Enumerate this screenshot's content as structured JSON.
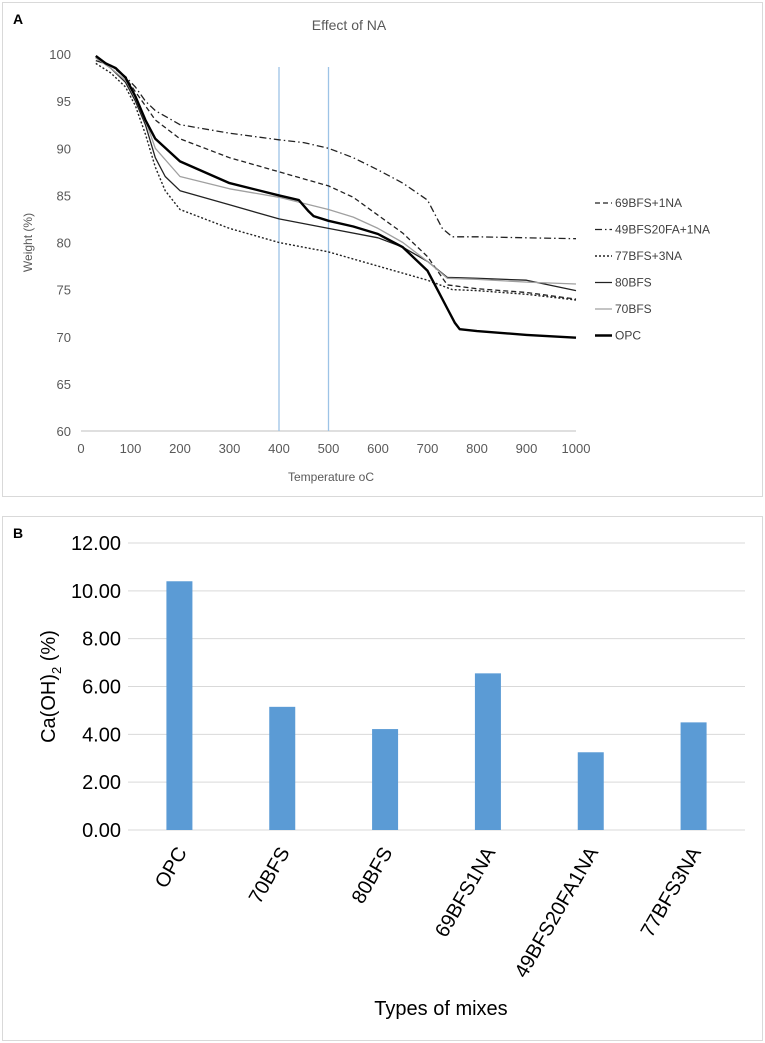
{
  "figure": {
    "panel_a_label": "A",
    "panel_b_label": "B"
  },
  "chart_data": [
    {
      "type": "line",
      "title": "Effect of NA",
      "xlabel": "Temperature oC",
      "ylabel": "Weight (%)",
      "xlim": [
        0,
        1000
      ],
      "ylim": [
        60,
        100
      ],
      "xticks": [
        0,
        100,
        200,
        300,
        400,
        500,
        600,
        700,
        800,
        900,
        1000
      ],
      "yticks": [
        60,
        65,
        70,
        75,
        80,
        85,
        90,
        95,
        100
      ],
      "grid": false,
      "legend_position": "right",
      "reference_lines_x": [
        400,
        500
      ],
      "reference_line_color": "#9dc3e6",
      "series": [
        {
          "name": "69BFS+1NA",
          "color": "#222222",
          "dash": "dashed",
          "width": 1.3,
          "points": [
            [
              30,
              99.6
            ],
            [
              60,
              98.8
            ],
            [
              90,
              97.5
            ],
            [
              110,
              96
            ],
            [
              130,
              94.5
            ],
            [
              150,
              93
            ],
            [
              200,
              91
            ],
            [
              300,
              89
            ],
            [
              400,
              87.5
            ],
            [
              500,
              86
            ],
            [
              550,
              84.8
            ],
            [
              600,
              82.9
            ],
            [
              650,
              81
            ],
            [
              700,
              78.5
            ],
            [
              740,
              75.5
            ],
            [
              800,
              75.1
            ],
            [
              900,
              74.7
            ],
            [
              1000,
              74
            ]
          ]
        },
        {
          "name": "49BFS20FA+1NA",
          "color": "#222222",
          "dash": "dashdot",
          "width": 1.3,
          "points": [
            [
              30,
              99.3
            ],
            [
              60,
              98.8
            ],
            [
              90,
              97.6
            ],
            [
              110,
              96.5
            ],
            [
              130,
              95
            ],
            [
              150,
              94
            ],
            [
              200,
              92.5
            ],
            [
              300,
              91.6
            ],
            [
              400,
              90.9
            ],
            [
              450,
              90.6
            ],
            [
              500,
              90
            ],
            [
              550,
              89
            ],
            [
              600,
              87.7
            ],
            [
              650,
              86.3
            ],
            [
              700,
              84.5
            ],
            [
              730,
              81.5
            ],
            [
              750,
              80.6
            ],
            [
              800,
              80.6
            ],
            [
              900,
              80.5
            ],
            [
              1000,
              80.4
            ]
          ]
        },
        {
          "name": "77BFS+3NA",
          "color": "#222222",
          "dash": "dotted",
          "width": 1.4,
          "points": [
            [
              30,
              99
            ],
            [
              60,
              98
            ],
            [
              90,
              96.5
            ],
            [
              110,
              94.5
            ],
            [
              130,
              91.5
            ],
            [
              150,
              88
            ],
            [
              170,
              85.5
            ],
            [
              200,
              83.5
            ],
            [
              300,
              81.5
            ],
            [
              400,
              80
            ],
            [
              500,
              79
            ],
            [
              600,
              77.5
            ],
            [
              700,
              76
            ],
            [
              750,
              75
            ],
            [
              800,
              74.9
            ],
            [
              900,
              74.5
            ],
            [
              1000,
              73.9
            ]
          ]
        },
        {
          "name": "80BFS",
          "color": "#222222",
          "dash": "solid",
          "width": 1.3,
          "points": [
            [
              30,
              99.6
            ],
            [
              60,
              98.5
            ],
            [
              90,
              97
            ],
            [
              110,
              95
            ],
            [
              130,
              92.5
            ],
            [
              150,
              89
            ],
            [
              170,
              87
            ],
            [
              200,
              85.5
            ],
            [
              300,
              84
            ],
            [
              400,
              82.5
            ],
            [
              500,
              81.5
            ],
            [
              600,
              80.5
            ],
            [
              650,
              79.5
            ],
            [
              700,
              78
            ],
            [
              740,
              76.3
            ],
            [
              800,
              76.2
            ],
            [
              900,
              76
            ],
            [
              1000,
              74.9
            ]
          ]
        },
        {
          "name": "70BFS",
          "color": "#a0a0a0",
          "dash": "solid",
          "width": 1.3,
          "points": [
            [
              30,
              99.6
            ],
            [
              60,
              98.5
            ],
            [
              90,
              97.2
            ],
            [
              110,
              95.5
            ],
            [
              130,
              93
            ],
            [
              150,
              90
            ],
            [
              200,
              87
            ],
            [
              300,
              85.7
            ],
            [
              400,
              84.8
            ],
            [
              500,
              83.5
            ],
            [
              550,
              82.7
            ],
            [
              600,
              81.5
            ],
            [
              650,
              80
            ],
            [
              700,
              78
            ],
            [
              740,
              76.2
            ],
            [
              800,
              76.1
            ],
            [
              900,
              75.8
            ],
            [
              1000,
              75.6
            ]
          ]
        },
        {
          "name": "OPC",
          "color": "#000000",
          "dash": "solid",
          "width": 2.4,
          "points": [
            [
              30,
              99.8
            ],
            [
              50,
              99
            ],
            [
              70,
              98.5
            ],
            [
              90,
              97.5
            ],
            [
              110,
              95.5
            ],
            [
              130,
              93
            ],
            [
              150,
              91
            ],
            [
              200,
              88.6
            ],
            [
              300,
              86.3
            ],
            [
              400,
              85
            ],
            [
              440,
              84.5
            ],
            [
              460,
              83.3
            ],
            [
              470,
              82.8
            ],
            [
              500,
              82.3
            ],
            [
              550,
              81.7
            ],
            [
              600,
              80.9
            ],
            [
              650,
              79.5
            ],
            [
              700,
              77
            ],
            [
              720,
              75
            ],
            [
              740,
              73
            ],
            [
              755,
              71.5
            ],
            [
              765,
              70.8
            ],
            [
              800,
              70.6
            ],
            [
              900,
              70.2
            ],
            [
              1000,
              69.9
            ]
          ]
        }
      ]
    },
    {
      "type": "bar",
      "xlabel": "Types of mixes",
      "ylabel_main": "Ca(OH)",
      "ylabel_sub": "2",
      "ylabel_tail": " (%)",
      "ylim": [
        0,
        12
      ],
      "yticks": [
        "0.00",
        "2.00",
        "4.00",
        "6.00",
        "8.00",
        "10.00",
        "12.00"
      ],
      "grid": true,
      "bar_color": "#5b9bd5",
      "categories": [
        "OPC",
        "70BFS",
        "80BFS",
        "69BFS1NA",
        "49BFS20FA1NA",
        "77BFS3NA"
      ],
      "values": [
        10.4,
        5.15,
        4.22,
        6.55,
        3.25,
        4.5
      ]
    }
  ]
}
